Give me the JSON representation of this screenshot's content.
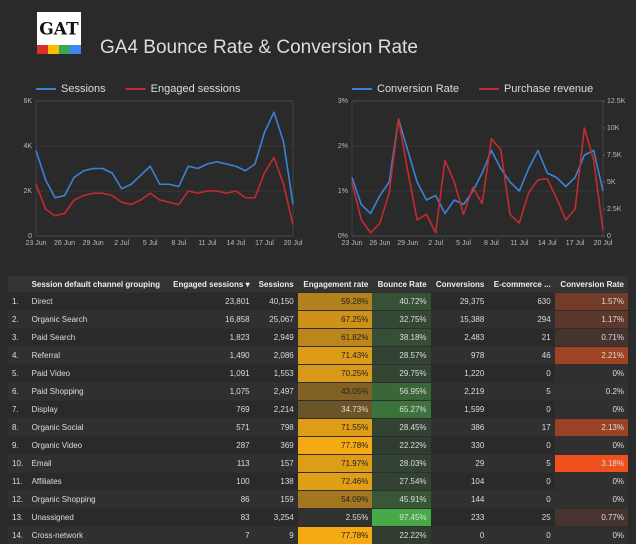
{
  "header": {
    "logo": "GAT",
    "title": "GA4 Bounce Rate & Conversion Rate"
  },
  "chart_data": [
    {
      "type": "line",
      "categories": [
        "23 Jun",
        null,
        null,
        "26 Jun",
        null,
        null,
        "29 Jun",
        null,
        null,
        "2 Jul",
        null,
        null,
        "5 Jul",
        null,
        null,
        "8 Jul",
        null,
        null,
        "11 Jul",
        null,
        null,
        "14 Jul",
        null,
        null,
        "17 Jul",
        null,
        null,
        "20 Jul"
      ],
      "ylim": [
        0,
        6000
      ],
      "yticks": [
        0,
        {
          "value": 2000,
          "label": "2K"
        },
        {
          "value": 4000,
          "label": "4K"
        },
        {
          "value": 6000,
          "label": "6K"
        }
      ],
      "grid": true,
      "series": [
        {
          "name": "Sessions",
          "color": "#3b82d6",
          "values": [
            3800,
            2500,
            1700,
            1800,
            2600,
            2900,
            3000,
            3000,
            2800,
            2100,
            2300,
            2700,
            3100,
            2300,
            2300,
            2200,
            3100,
            3000,
            3200,
            3300,
            3200,
            3100,
            2900,
            3200,
            4600,
            5500,
            4200,
            1400
          ]
        },
        {
          "name": "Engaged sessions",
          "color": "#c42a2f",
          "values": [
            2300,
            1200,
            900,
            1000,
            1600,
            1800,
            1900,
            1900,
            1800,
            1500,
            1400,
            1600,
            1900,
            1600,
            1500,
            1400,
            2000,
            1900,
            2000,
            2000,
            1900,
            2000,
            1700,
            1700,
            2800,
            3500,
            2300,
            500
          ]
        }
      ]
    },
    {
      "type": "line",
      "categories": [
        "23 Jun",
        null,
        null,
        "26 Jun",
        null,
        null,
        "29 Jun",
        null,
        null,
        "2 Jul",
        null,
        null,
        "5 Jul",
        null,
        null,
        "8 Jul",
        null,
        null,
        "11 Jul",
        null,
        null,
        "14 Jul",
        null,
        null,
        "17 Jul",
        null,
        null,
        "20 Jul"
      ],
      "ylim": [
        0,
        3
      ],
      "yticks": [
        {
          "value": 0,
          "label": "0%"
        },
        {
          "value": 1,
          "label": "1%"
        },
        {
          "value": 2,
          "label": "2%"
        },
        {
          "value": 3,
          "label": "3%"
        }
      ],
      "y2lim": [
        0,
        12500
      ],
      "y2ticks": [
        0,
        {
          "value": 2500,
          "label": "2.5K"
        },
        {
          "value": 5000,
          "label": "5K"
        },
        {
          "value": 7500,
          "label": "7.5K"
        },
        {
          "value": 10000,
          "label": "10K"
        },
        {
          "value": 12500,
          "label": "12.5K"
        }
      ],
      "grid": true,
      "series": [
        {
          "name": "Conversion Rate",
          "color": "#3b82d6",
          "values": [
            1.3,
            0.7,
            0.5,
            0.9,
            1.2,
            2.6,
            1.9,
            1.2,
            0.8,
            0.9,
            0.5,
            0.8,
            0.7,
            1.0,
            1.4,
            1.9,
            1.5,
            1.2,
            1.0,
            1.5,
            1.9,
            1.4,
            1.3,
            1.1,
            1.3,
            1.8,
            1.9,
            1.0
          ]
        },
        {
          "name": "Purchase revenue",
          "color": "#c42a2f",
          "axis": "y2",
          "values": [
            5000,
            1500,
            300,
            1200,
            4000,
            10800,
            6000,
            1500,
            2000,
            300,
            7000,
            5000,
            2000,
            4500,
            3000,
            9000,
            8000,
            2000,
            1200,
            4000,
            5200,
            5300,
            3500,
            1500,
            2500,
            10000,
            7000,
            500
          ]
        }
      ]
    }
  ],
  "table": {
    "columns": [
      "Session default channel grouping",
      "Engaged sessions",
      "Sessions",
      "Engagement rate",
      "Bounce Rate",
      "Conversions",
      "E-commerce ...",
      "Conversion Rate"
    ],
    "rows": [
      [
        "1.",
        "Direct",
        "23,801",
        "40,150",
        "59.28%",
        "40.72%",
        "29,375",
        "630",
        "1.57%"
      ],
      [
        "2.",
        "Organic Search",
        "16,858",
        "25,067",
        "67.25%",
        "32.75%",
        "15,388",
        "294",
        "1.17%"
      ],
      [
        "3.",
        "Paid Search",
        "1,823",
        "2,949",
        "61.82%",
        "38.18%",
        "2,483",
        "21",
        "0.71%"
      ],
      [
        "4.",
        "Referral",
        "1,490",
        "2,086",
        "71.43%",
        "28.57%",
        "978",
        "46",
        "2.21%"
      ],
      [
        "5.",
        "Paid Video",
        "1,091",
        "1,553",
        "70.25%",
        "29.75%",
        "1,220",
        "0",
        "0%"
      ],
      [
        "6.",
        "Paid Shopping",
        "1,075",
        "2,497",
        "43.05%",
        "56.95%",
        "2,219",
        "5",
        "0.2%"
      ],
      [
        "7.",
        "Display",
        "769",
        "2,214",
        "34.73%",
        "65.27%",
        "1,599",
        "0",
        "0%"
      ],
      [
        "8.",
        "Organic Social",
        "571",
        "798",
        "71.55%",
        "28.45%",
        "386",
        "17",
        "2.13%"
      ],
      [
        "9.",
        "Organic Video",
        "287",
        "369",
        "77.78%",
        "22.22%",
        "330",
        "0",
        "0%"
      ],
      [
        "10.",
        "Email",
        "113",
        "157",
        "71.97%",
        "28.03%",
        "29",
        "5",
        "3.18%"
      ],
      [
        "11.",
        "Affiliates",
        "100",
        "138",
        "72.46%",
        "27.54%",
        "104",
        "0",
        "0%"
      ],
      [
        "12.",
        "Organic Shopping",
        "86",
        "159",
        "54.09%",
        "45.91%",
        "144",
        "0",
        "0%"
      ],
      [
        "13.",
        "Unassigned",
        "83",
        "3,254",
        "2.55%",
        "97.45%",
        "233",
        "25",
        "0.77%"
      ],
      [
        "14.",
        "Cross-network",
        "7",
        "9",
        "77.78%",
        "22.22%",
        "0",
        "0",
        "0%"
      ]
    ]
  }
}
